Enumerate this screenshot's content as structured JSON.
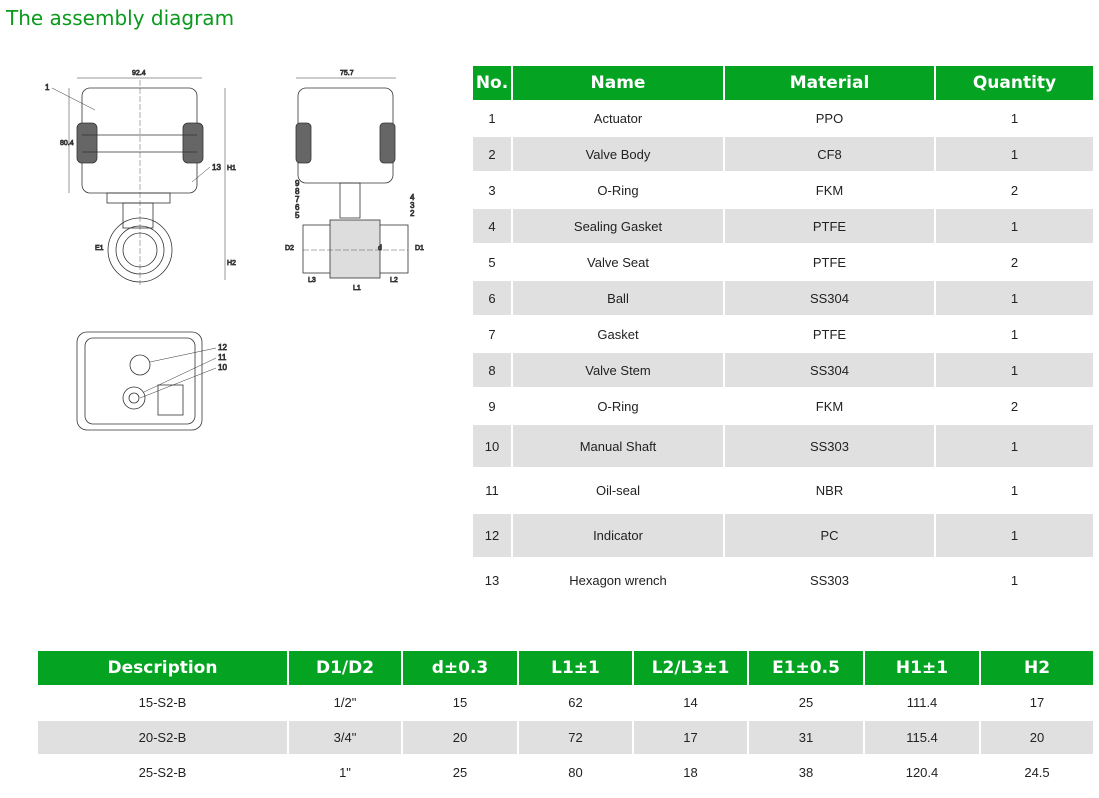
{
  "title": "The assembly diagram",
  "diagram": {
    "dims": {
      "width_front": "92.4",
      "height_actuator": "80.4",
      "width_side": "75.7",
      "h1": "H1",
      "h2": "H2",
      "e1": "E1",
      "l1": "L1",
      "l2": "L2",
      "l3": "L3",
      "d1": "D1",
      "d": "d",
      "d2": "D2"
    },
    "callouts": [
      "1",
      "2",
      "3",
      "4",
      "5",
      "6",
      "7",
      "8",
      "9",
      "10",
      "11",
      "12",
      "13"
    ]
  },
  "parts_table": {
    "headers": [
      "No.",
      "Name",
      "Material",
      "Quantity"
    ],
    "rows": [
      [
        "1",
        "Actuator",
        "PPO",
        "1"
      ],
      [
        "2",
        "Valve Body",
        "CF8",
        "1"
      ],
      [
        "3",
        "O-Ring",
        "FKM",
        "2"
      ],
      [
        "4",
        "Sealing Gasket",
        "PTFE",
        "1"
      ],
      [
        "5",
        "Valve Seat",
        "PTFE",
        "2"
      ],
      [
        "6",
        "Ball",
        "SS304",
        "1"
      ],
      [
        "7",
        "Gasket",
        "PTFE",
        "1"
      ],
      [
        "8",
        "Valve Stem",
        "SS304",
        "1"
      ],
      [
        "9",
        "O-Ring",
        "FKM",
        "2"
      ],
      [
        "10",
        "Manual Shaft",
        "SS303",
        "1"
      ],
      [
        "11",
        "Oil-seal",
        "NBR",
        "1"
      ],
      [
        "12",
        "Indicator",
        "PC",
        "1"
      ],
      [
        "13",
        "Hexagon wrench",
        "SS303",
        "1"
      ]
    ]
  },
  "dims_table": {
    "headers": [
      "Description",
      "D1/D2",
      "d±0.3",
      "L1±1",
      "L2/L3±1",
      "E1±0.5",
      "H1±1",
      "H2"
    ],
    "rows": [
      [
        "15-S2-B",
        "1/2\"",
        "15",
        "62",
        "14",
        "25",
        "111.4",
        "17"
      ],
      [
        "20-S2-B",
        "3/4\"",
        "20",
        "72",
        "17",
        "31",
        "115.4",
        "20"
      ],
      [
        "25-S2-B",
        "1\"",
        "25",
        "80",
        "18",
        "38",
        "120.4",
        "24.5"
      ]
    ]
  },
  "colors": {
    "accent": "#04a321",
    "title": "#0a9a1c",
    "stripe": "#e0e0e0"
  }
}
